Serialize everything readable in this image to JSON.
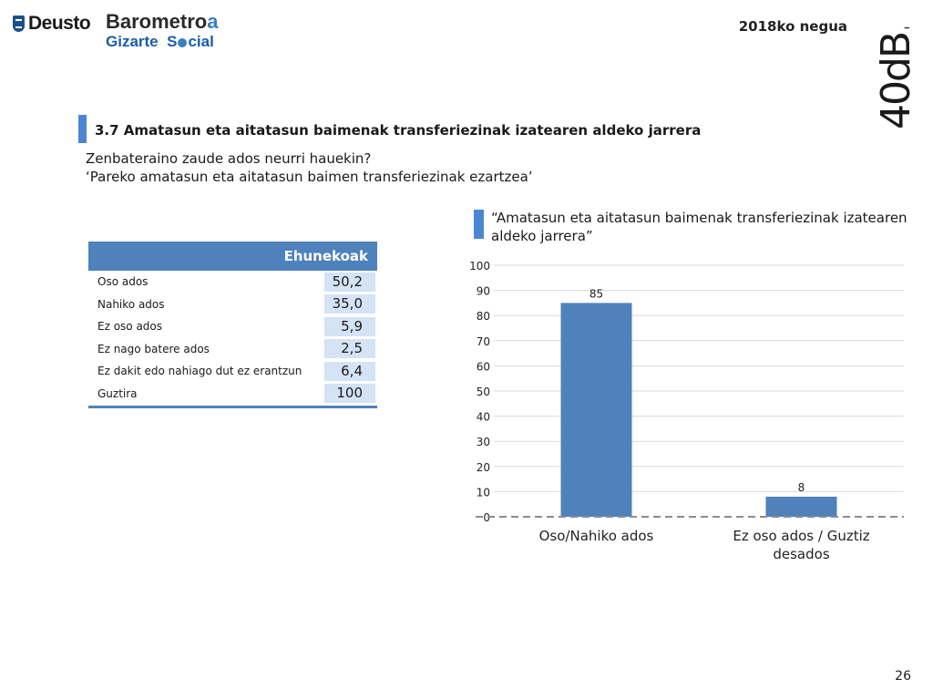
{
  "header": {
    "deusto": "Deusto",
    "barometer_title_main": "Barometro",
    "barometer_title_accent": "a",
    "barometer_sub_1": "Gizarte",
    "barometer_sub_2": "S",
    "barometer_sub_3": "cial",
    "date": "2018ko negua",
    "brand": "40dB."
  },
  "section": {
    "title": "3.7 Amatasun eta aitatasun baimenak transferiezinak izatearen aldeko jarrera",
    "question_line1": "Zenbateraino zaude ados neurri hauekin?",
    "question_line2": "‘Pareko amatasun eta aitatasun baimen transferiezinak ezartzea’"
  },
  "table": {
    "header": "Ehunekoak",
    "rows": [
      {
        "label": "Oso ados",
        "value": "50,2"
      },
      {
        "label": "Nahiko ados",
        "value": "35,0"
      },
      {
        "label": "Ez oso ados",
        "value": "5,9"
      },
      {
        "label": "Ez nago batere ados",
        "value": "2,5"
      },
      {
        "label": "Ez dakit edo nahiago dut ez erantzun",
        "value": "6,4"
      },
      {
        "label": "Guztira",
        "value": "100"
      }
    ]
  },
  "chart_data": {
    "type": "bar",
    "title": "“Amatasun eta aitatasun baimenak transferiezinak izatearen aldeko jarrera”",
    "categories": [
      [
        "Oso/Nahiko ados"
      ],
      [
        "Ez oso ados / Guztiz",
        "desados"
      ]
    ],
    "values": [
      85,
      8
    ],
    "value_labels": [
      "85",
      "8"
    ],
    "ylim": [
      0,
      100
    ],
    "yticks": [
      0,
      10,
      20,
      30,
      40,
      50,
      60,
      70,
      80,
      90,
      100
    ],
    "grid": true,
    "color": "#4f81bd"
  },
  "footer": {
    "page": "26"
  }
}
